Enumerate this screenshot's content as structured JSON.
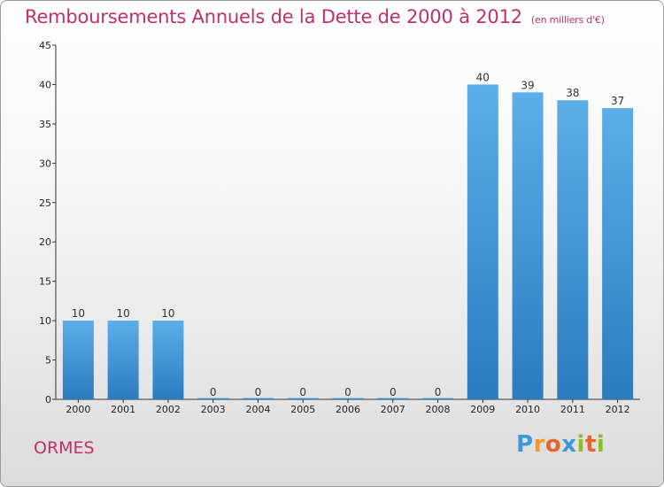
{
  "title": "Remboursements Annuels de la Dette de 2000 à 2012",
  "unit": "(en milliers d'€)",
  "commune": "ORMES",
  "logo": "Proxiti",
  "colors": {
    "title": "#c0306a",
    "bar_top": "#5caee8",
    "bar_bottom": "#2a7cbf",
    "axis": "#333333"
  },
  "chart_data": {
    "type": "bar",
    "title": "Remboursements Annuels de la Dette de 2000 à 2012",
    "xlabel": "",
    "ylabel": "",
    "categories": [
      "2000",
      "2001",
      "2002",
      "2003",
      "2004",
      "2005",
      "2006",
      "2007",
      "2008",
      "2009",
      "2010",
      "2011",
      "2012"
    ],
    "values": [
      10,
      10,
      10,
      0,
      0,
      0,
      0,
      0,
      0,
      40,
      39,
      38,
      37
    ],
    "yticks": [
      0,
      5,
      10,
      15,
      20,
      25,
      30,
      35,
      40,
      45
    ],
    "ylim": [
      0,
      45
    ],
    "grid": false,
    "legend": "none"
  }
}
